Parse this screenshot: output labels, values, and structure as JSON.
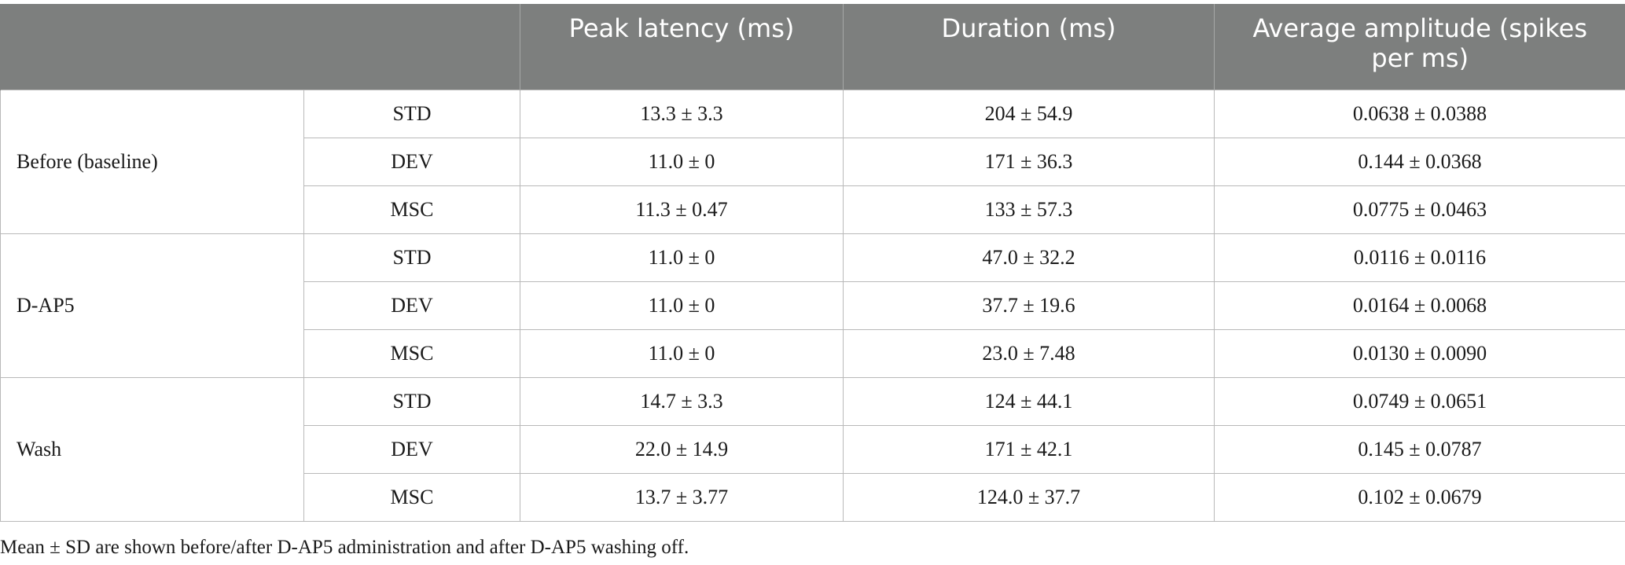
{
  "table": {
    "headers": [
      "",
      "",
      "Peak latency (ms)",
      "Duration (ms)",
      "Average amplitude (spikes per ms)"
    ],
    "groups": [
      {
        "label": "Before (baseline)",
        "rows": [
          {
            "condition": "STD",
            "peak_latency": "13.3 ± 3.3",
            "duration": "204 ± 54.9",
            "amplitude": "0.0638 ± 0.0388"
          },
          {
            "condition": "DEV",
            "peak_latency": "11.0 ± 0",
            "duration": "171 ± 36.3",
            "amplitude": "0.144 ± 0.0368"
          },
          {
            "condition": "MSC",
            "peak_latency": "11.3 ± 0.47",
            "duration": "133 ± 57.3",
            "amplitude": "0.0775 ± 0.0463"
          }
        ]
      },
      {
        "label": "D-AP5",
        "rows": [
          {
            "condition": "STD",
            "peak_latency": "11.0 ± 0",
            "duration": "47.0 ± 32.2",
            "amplitude": "0.0116 ± 0.0116"
          },
          {
            "condition": "DEV",
            "peak_latency": "11.0 ± 0",
            "duration": "37.7 ± 19.6",
            "amplitude": "0.0164 ± 0.0068"
          },
          {
            "condition": "MSC",
            "peak_latency": "11.0 ± 0",
            "duration": "23.0 ± 7.48",
            "amplitude": "0.0130 ± 0.0090"
          }
        ]
      },
      {
        "label": "Wash",
        "rows": [
          {
            "condition": "STD",
            "peak_latency": "14.7 ± 3.3",
            "duration": "124 ± 44.1",
            "amplitude": "0.0749 ± 0.0651"
          },
          {
            "condition": "DEV",
            "peak_latency": "22.0 ± 14.9",
            "duration": "171 ± 42.1",
            "amplitude": "0.145 ± 0.0787"
          },
          {
            "condition": "MSC",
            "peak_latency": "13.7 ± 3.77",
            "duration": "124.0 ± 37.7",
            "amplitude": "0.102 ± 0.0679"
          }
        ]
      }
    ]
  },
  "footnote": "Mean ± SD are shown before/after D-AP5 administration and after D-AP5 washing off."
}
